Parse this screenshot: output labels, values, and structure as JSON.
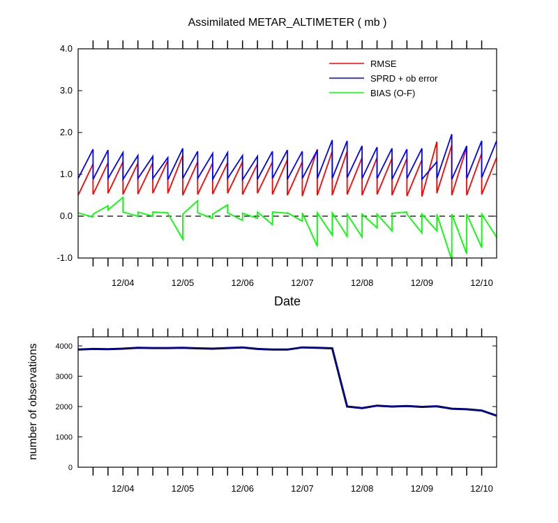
{
  "colors": {
    "rmse": "#ff0000",
    "spread": "#0000ff",
    "bias": "#00ff00",
    "nobs": "#0000cc",
    "nobs_shadow": "#000000"
  },
  "chart_data": [
    {
      "type": "line",
      "title": "Assimilated METAR_ALTIMETER ( mb )",
      "xlabel": "Date",
      "ylabel": "",
      "xlim": [
        0,
        7.0
      ],
      "ylim": [
        -1.0,
        4.0
      ],
      "yticks": [
        "4.0",
        "3.0",
        "2.0",
        "1.0",
        "0.0",
        "-1.0"
      ],
      "ytick_values": [
        4.0,
        3.0,
        2.0,
        1.0,
        0.0,
        -1.0
      ],
      "xticks": [
        "12/04",
        "12/05",
        "12/06",
        "12/07",
        "12/08",
        "12/09",
        "12/10"
      ],
      "xtick_values": [
        0.75,
        1.75,
        2.75,
        3.75,
        4.75,
        5.75,
        6.75
      ],
      "legend": {
        "position": "top-right",
        "entries": [
          "RMSE",
          "SPRD + ob error",
          "BIAS (O-F)"
        ]
      },
      "zero_line": "dashed",
      "series": [
        {
          "name": "RMSE",
          "x": [
            0,
            0.25,
            0.25,
            0.5,
            0.5,
            0.75,
            0.75,
            1.0,
            1.0,
            1.25,
            1.25,
            1.5,
            1.5,
            1.75,
            1.75,
            2.0,
            2.0,
            2.25,
            2.25,
            2.5,
            2.5,
            2.75,
            2.75,
            3.0,
            3.0,
            3.25,
            3.25,
            3.5,
            3.5,
            3.75,
            3.75,
            4.0,
            4.0,
            4.25,
            4.25,
            4.5,
            4.5,
            4.75,
            4.75,
            5.0,
            5.0,
            5.25,
            5.25,
            5.5,
            5.5,
            5.75,
            5.75,
            6.0,
            6.0,
            6.25,
            6.25,
            6.5,
            6.5,
            6.75,
            6.75,
            7.0
          ],
          "values": [
            0.5,
            1.25,
            0.52,
            1.28,
            0.55,
            1.3,
            0.52,
            1.27,
            0.53,
            1.28,
            0.55,
            1.33,
            0.55,
            1.45,
            0.5,
            1.3,
            0.52,
            1.27,
            0.53,
            1.28,
            0.55,
            1.3,
            0.52,
            1.25,
            0.55,
            1.3,
            0.52,
            1.35,
            0.5,
            1.3,
            0.48,
            1.6,
            0.5,
            1.55,
            0.5,
            1.55,
            0.52,
            1.4,
            0.5,
            1.4,
            0.52,
            1.38,
            0.5,
            1.38,
            0.48,
            1.35,
            0.47,
            1.78,
            0.55,
            1.7,
            0.5,
            1.65,
            0.5,
            1.5,
            0.52,
            1.4
          ]
        },
        {
          "name": "SPRD + ob error",
          "x": [
            0,
            0.25,
            0.25,
            0.5,
            0.5,
            0.75,
            0.75,
            1.0,
            1.0,
            1.25,
            1.25,
            1.5,
            1.5,
            1.75,
            1.75,
            2.0,
            2.0,
            2.25,
            2.25,
            2.5,
            2.5,
            2.75,
            2.75,
            3.0,
            3.0,
            3.25,
            3.25,
            3.5,
            3.5,
            3.75,
            3.75,
            4.0,
            4.0,
            4.25,
            4.25,
            4.5,
            4.5,
            4.75,
            4.75,
            5.0,
            5.0,
            5.25,
            5.25,
            5.5,
            5.5,
            5.75,
            5.75,
            6.0,
            6.0,
            6.25,
            6.25,
            6.5,
            6.5,
            6.75,
            6.75,
            7.0
          ],
          "values": [
            0.9,
            1.6,
            0.88,
            1.58,
            0.9,
            1.52,
            0.88,
            1.45,
            0.9,
            1.43,
            0.9,
            1.4,
            0.87,
            1.62,
            0.9,
            1.55,
            0.9,
            1.5,
            0.88,
            1.52,
            0.9,
            1.45,
            0.87,
            1.43,
            0.88,
            1.55,
            0.9,
            1.58,
            0.88,
            1.55,
            0.9,
            1.58,
            0.9,
            1.82,
            0.9,
            1.8,
            0.92,
            1.68,
            0.9,
            1.65,
            0.9,
            1.62,
            0.88,
            1.6,
            0.9,
            1.62,
            0.88,
            1.3,
            0.9,
            1.96,
            0.88,
            1.68,
            0.9,
            1.8,
            0.92,
            1.8
          ]
        },
        {
          "name": "BIAS (O-F)",
          "x": [
            0,
            0.25,
            0.25,
            0.5,
            0.5,
            0.75,
            0.75,
            1.0,
            1.0,
            1.25,
            1.25,
            1.5,
            1.5,
            1.75,
            1.75,
            2.0,
            2.0,
            2.25,
            2.25,
            2.5,
            2.5,
            2.75,
            2.75,
            3.0,
            3.0,
            3.25,
            3.25,
            3.5,
            3.5,
            3.75,
            3.75,
            4.0,
            4.0,
            4.25,
            4.25,
            4.5,
            4.5,
            4.75,
            4.75,
            5.0,
            5.0,
            5.25,
            5.25,
            5.5,
            5.5,
            5.75,
            5.75,
            6.0,
            6.0,
            6.25,
            6.25,
            6.5,
            6.5,
            6.75,
            6.75,
            7.0
          ],
          "values": [
            0.08,
            -0.02,
            0.05,
            0.25,
            0.15,
            0.45,
            0.1,
            0.0,
            0.1,
            0.0,
            0.1,
            0.08,
            0.07,
            -0.55,
            0.05,
            0.37,
            0.08,
            -0.05,
            0.05,
            0.27,
            0.08,
            -0.1,
            0.07,
            -0.05,
            0.1,
            -0.2,
            0.1,
            0.07,
            0.08,
            -0.12,
            0.08,
            -0.72,
            0.08,
            -0.45,
            0.08,
            -0.48,
            0.05,
            -0.5,
            0.05,
            -0.28,
            0.05,
            -0.35,
            0.07,
            0.1,
            0.05,
            -0.4,
            0.05,
            -0.35,
            0.05,
            -1.05,
            0.05,
            -0.9,
            0.05,
            -0.75,
            0.05,
            -0.5
          ]
        }
      ]
    },
    {
      "type": "line",
      "title": "",
      "xlabel": "",
      "ylabel": "number of observations",
      "xlim": [
        0,
        7.0
      ],
      "ylim": [
        0,
        4300
      ],
      "yticks": [
        "4000",
        "3000",
        "2000",
        "1000",
        "0"
      ],
      "ytick_values": [
        4000,
        3000,
        2000,
        1000,
        0
      ],
      "xticks": [
        "12/04",
        "12/05",
        "12/06",
        "12/07",
        "12/08",
        "12/09",
        "12/10"
      ],
      "xtick_values": [
        0.75,
        1.75,
        2.75,
        3.75,
        4.75,
        5.75,
        6.75
      ],
      "series": [
        {
          "name": "number of observations",
          "x": [
            0,
            0.25,
            0.5,
            0.75,
            1.0,
            1.25,
            1.5,
            1.75,
            2.0,
            2.25,
            2.5,
            2.75,
            3.0,
            3.25,
            3.5,
            3.75,
            4.0,
            4.25,
            4.5,
            4.75,
            5.0,
            5.25,
            5.5,
            5.75,
            6.0,
            6.25,
            6.5,
            6.75,
            7.0
          ],
          "values": [
            3880,
            3900,
            3890,
            3910,
            3940,
            3930,
            3930,
            3940,
            3920,
            3910,
            3930,
            3950,
            3900,
            3880,
            3880,
            3950,
            3940,
            3920,
            2000,
            1950,
            2030,
            2000,
            2020,
            1990,
            2010,
            1930,
            1910,
            1870,
            1700
          ]
        }
      ]
    }
  ]
}
